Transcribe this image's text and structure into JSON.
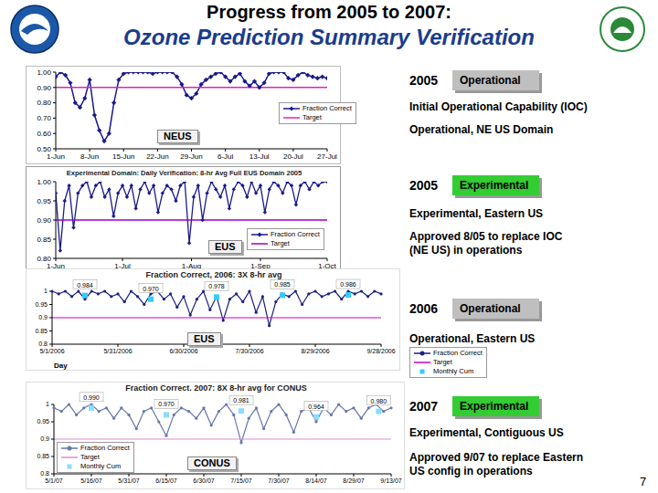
{
  "slide": {
    "title": "Progress from 2005 to 2007:",
    "subtitle": "Ozone Prediction Summary Verification",
    "page": 7,
    "panels": [
      {
        "year": "2005",
        "status": "Operational",
        "color": "#bfbfbf",
        "lines": [
          "Initial Operational Capability (IOC)",
          "Operational, NE US Domain"
        ]
      },
      {
        "year": "2005",
        "status": "Experimental",
        "color": "#33cc33",
        "lines": [
          "Experimental, Eastern US",
          "Approved 8/05 to replace IOC",
          "(NE US) in operations"
        ]
      },
      {
        "year": "2006",
        "status": "Operational",
        "color": "#bfbfbf",
        "lines": [
          "Operational, Eastern US"
        ]
      },
      {
        "year": "2007",
        "status": "Experimental",
        "color": "#33cc33",
        "lines": [
          "Experimental, Contiguous US",
          "Approved 9/07 to replace Eastern",
          "US config in operations"
        ]
      }
    ]
  },
  "chart_data": [
    {
      "type": "line",
      "annotations": [
        "NEUS"
      ],
      "grid": false,
      "xlim": [
        0,
        56
      ],
      "xticks": [
        {
          "value": 0,
          "label": "1-Jun"
        },
        {
          "value": 7,
          "label": "8-Jun"
        },
        {
          "value": 14,
          "label": "15-Jun"
        },
        {
          "value": 21,
          "label": "22-Jun"
        },
        {
          "value": 28,
          "label": "29-Jun"
        },
        {
          "value": 35,
          "label": "6-Jul"
        },
        {
          "value": 42,
          "label": "13-Jul"
        },
        {
          "value": 49,
          "label": "20-Jul"
        },
        {
          "value": 56,
          "label": "27-Jul"
        }
      ],
      "ylim": [
        0.5,
        1
      ],
      "yticks": [
        {
          "value": 0.5,
          "label": "0.50"
        },
        {
          "value": 0.6,
          "label": "0.60"
        },
        {
          "value": 0.7,
          "label": "0.70"
        },
        {
          "value": 0.8,
          "label": "0.80"
        },
        {
          "value": 0.9,
          "label": "0.90"
        },
        {
          "value": 1,
          "label": "1.00"
        }
      ],
      "series": [
        {
          "name": "Fraction Correct",
          "color": "#1a1a8c",
          "marker": "diamond",
          "x": [
            0,
            1,
            2,
            3,
            4,
            5,
            6,
            7,
            8,
            9,
            10,
            11,
            12,
            13,
            14,
            15,
            16,
            17,
            18,
            19,
            20,
            21,
            22,
            23,
            24,
            25,
            26,
            27,
            28,
            29,
            30,
            31,
            32,
            33,
            34,
            35,
            36,
            37,
            38,
            39,
            40,
            41,
            42,
            43,
            44,
            45,
            46,
            47,
            48,
            49,
            50,
            51,
            52,
            53,
            54,
            55,
            56
          ],
          "values": [
            0.97,
            1,
            0.98,
            0.93,
            0.8,
            0.77,
            0.83,
            0.95,
            0.72,
            0.62,
            0.55,
            0.6,
            0.8,
            0.95,
            0.99,
            1,
            1,
            1,
            1,
            1,
            0.99,
            1,
            1,
            1,
            1,
            0.97,
            0.92,
            0.85,
            0.83,
            0.86,
            0.92,
            0.95,
            0.97,
            0.99,
            1,
            0.97,
            0.94,
            0.97,
            0.99,
            0.94,
            0.91,
            0.94,
            0.9,
            0.93,
            0.99,
            1,
            1,
            1,
            0.96,
            0.95,
            0.98,
            1,
            0.98,
            0.97,
            0.96,
            0.97,
            0.96
          ]
        },
        {
          "name": "Target",
          "color": "#e020c0",
          "marker": "none",
          "x": [
            0,
            56
          ],
          "values": [
            0.9,
            0.9
          ]
        }
      ]
    },
    {
      "type": "line",
      "title": "Experimental Domain: Daily Verification: 8-hr Avg Full EUS Domain 2005",
      "annotations": [
        "EUS"
      ],
      "grid": false,
      "xlim": [
        0,
        122
      ],
      "xticks": [
        {
          "value": 0,
          "label": "1-Jun"
        },
        {
          "value": 30,
          "label": "1-Jul"
        },
        {
          "value": 61,
          "label": "1-Aug"
        },
        {
          "value": 92,
          "label": "1-Sep"
        },
        {
          "value": 122,
          "label": "1-Oct"
        }
      ],
      "ylim": [
        0.8,
        1
      ],
      "yticks": [
        {
          "value": 0.8,
          "label": "0.80"
        },
        {
          "value": 0.85,
          "label": "0.85"
        },
        {
          "value": 0.9,
          "label": "0.90"
        },
        {
          "value": 0.95,
          "label": "0.95"
        },
        {
          "value": 1,
          "label": "1.00"
        }
      ],
      "series": [
        {
          "name": "Fraction Correct",
          "color": "#1a1a8c",
          "marker": "diamond",
          "x": [
            0,
            2,
            4,
            6,
            8,
            10,
            12,
            14,
            16,
            18,
            20,
            22,
            24,
            26,
            28,
            30,
            32,
            34,
            36,
            38,
            40,
            42,
            44,
            46,
            48,
            50,
            52,
            54,
            56,
            58,
            60,
            62,
            64,
            66,
            68,
            70,
            72,
            74,
            76,
            78,
            80,
            82,
            84,
            86,
            88,
            90,
            92,
            94,
            96,
            98,
            100,
            102,
            104,
            106,
            108,
            110,
            112,
            114,
            116,
            118,
            120,
            122
          ],
          "values": [
            0.97,
            0.82,
            0.95,
            0.99,
            0.88,
            0.97,
            0.99,
            1,
            0.96,
            0.99,
            1,
            0.96,
            0.98,
            0.91,
            0.97,
            0.99,
            0.96,
            0.99,
            0.93,
            0.98,
            1,
            0.97,
            0.99,
            0.92,
            0.97,
            0.99,
            0.98,
            0.95,
            0.99,
            1,
            0.84,
            0.96,
            0.99,
            0.9,
            0.97,
            1,
            0.98,
            0.96,
            0.99,
            0.93,
            0.98,
            1,
            0.99,
            0.96,
            1,
            0.97,
            0.99,
            0.92,
            0.98,
            1,
            0.99,
            0.97,
            1,
            0.99,
            0.94,
            0.99,
            1,
            0.98,
            1,
            0.99,
            1,
            1
          ]
        },
        {
          "name": "Target",
          "color": "#9900cc",
          "marker": "none",
          "x": [
            0,
            122
          ],
          "values": [
            0.9,
            0.9
          ]
        }
      ]
    },
    {
      "type": "line",
      "title": "Fraction Correct, 2006: 3X 8-hr avg",
      "xlabel": "Day",
      "annotations": [
        "EUS"
      ],
      "grid": false,
      "xlim": [
        0,
        150
      ],
      "xticks": [
        {
          "value": 0,
          "label": "5/1/2006"
        },
        {
          "value": 30,
          "label": "5/31/2006"
        },
        {
          "value": 60,
          "label": "6/30/2006"
        },
        {
          "value": 90,
          "label": "7/30/2006"
        },
        {
          "value": 120,
          "label": "8/29/2006"
        },
        {
          "value": 150,
          "label": "9/28/2006"
        }
      ],
      "ylim": [
        0.8,
        1
      ],
      "yticks": [
        0.8,
        0.85,
        0.9,
        0.95,
        1
      ],
      "series": [
        {
          "name": "Fraction Correct",
          "color": "#1c2280",
          "marker": "circle",
          "x": [
            0,
            3,
            6,
            9,
            12,
            15,
            18,
            21,
            24,
            27,
            30,
            33,
            36,
            39,
            42,
            45,
            48,
            51,
            54,
            57,
            60,
            63,
            66,
            69,
            72,
            75,
            78,
            81,
            84,
            87,
            90,
            93,
            96,
            99,
            102,
            105,
            108,
            111,
            114,
            117,
            120,
            123,
            126,
            129,
            132,
            135,
            138,
            141,
            144,
            147,
            150
          ],
          "values": [
            1,
            0.99,
            1,
            0.98,
            1,
            0.97,
            1,
            0.99,
            1,
            0.98,
            0.99,
            0.96,
            1,
            0.98,
            0.95,
            0.99,
            1,
            0.97,
            0.99,
            0.94,
            0.98,
            0.91,
            0.97,
            1,
            0.93,
            0.98,
            0.89,
            0.97,
            0.99,
            0.96,
            1,
            0.92,
            0.98,
            0.87,
            0.96,
            0.99,
            0.98,
            1,
            0.95,
            0.99,
            1,
            0.98,
            0.99,
            1,
            0.97,
            1,
            0.99,
            1,
            0.98,
            1,
            0.99
          ]
        },
        {
          "name": "Target",
          "color": "#cc00cc",
          "marker": "none",
          "x": [
            0,
            150
          ],
          "values": [
            0.9,
            0.9
          ]
        },
        {
          "name": "Monthly Cum",
          "type": "scatter",
          "color": "#33ccff",
          "marker": "square",
          "data_labels": true,
          "x": [
            15,
            45,
            75,
            105,
            135
          ],
          "values": [
            0.984,
            0.97,
            0.978,
            0.985,
            0.986
          ],
          "value_labels": [
            "0.984",
            "0.970",
            "0.978",
            "0.985",
            "0.986"
          ]
        }
      ]
    },
    {
      "type": "line",
      "title": "Fraction Correct. 2007: 8X 8-hr avg for CONUS",
      "annotations": [
        "CONUS"
      ],
      "grid": false,
      "xlim": [
        0,
        135
      ],
      "xticks": [
        {
          "value": 0,
          "label": "5/1/07"
        },
        {
          "value": 15,
          "label": "5/16/07"
        },
        {
          "value": 30,
          "label": "5/31/07"
        },
        {
          "value": 45,
          "label": "6/15/07"
        },
        {
          "value": 60,
          "label": "6/30/07"
        },
        {
          "value": 75,
          "label": "7/15/07"
        },
        {
          "value": 90,
          "label": "7/30/07"
        },
        {
          "value": 105,
          "label": "8/14/07"
        },
        {
          "value": 120,
          "label": "8/29/07"
        },
        {
          "value": 135,
          "label": "9/13/07"
        }
      ],
      "ylim": [
        0.8,
        1
      ],
      "yticks": [
        0.8,
        0.85,
        0.9,
        0.95,
        1
      ],
      "series": [
        {
          "name": "Fraction Correct",
          "color": "#6677aa",
          "marker": "circle",
          "x": [
            0,
            3,
            6,
            9,
            12,
            15,
            18,
            21,
            24,
            27,
            30,
            33,
            36,
            39,
            42,
            45,
            48,
            51,
            54,
            57,
            60,
            63,
            66,
            69,
            72,
            75,
            78,
            81,
            84,
            87,
            90,
            93,
            96,
            99,
            102,
            105,
            108,
            111,
            114,
            117,
            120,
            123,
            126,
            129,
            132,
            135
          ],
          "values": [
            0.99,
            0.98,
            1,
            0.97,
            0.99,
            1,
            0.98,
            0.99,
            0.96,
            0.99,
            0.97,
            0.93,
            0.98,
            0.99,
            0.95,
            0.91,
            0.97,
            0.99,
            0.98,
            0.96,
            0.99,
            0.94,
            0.98,
            1,
            0.97,
            0.89,
            0.96,
            0.99,
            0.93,
            0.98,
            1,
            0.97,
            0.92,
            0.98,
            0.99,
            0.95,
            0.99,
            0.97,
            1,
            0.98,
            0.99,
            0.96,
            0.99,
            1,
            0.98,
            0.99
          ]
        },
        {
          "name": "Target",
          "color": "#dd88dd",
          "marker": "none",
          "x": [
            0,
            135
          ],
          "values": [
            0.9,
            0.9
          ]
        },
        {
          "name": "Monthly Cum",
          "type": "scatter",
          "color": "#88ddff",
          "marker": "square",
          "data_labels": true,
          "x": [
            15,
            45,
            75,
            105,
            130
          ],
          "values": [
            0.99,
            0.97,
            0.981,
            0.964,
            0.98
          ],
          "value_labels": [
            "0.990",
            "0.970",
            "0.981",
            "0.964",
            "0.980"
          ]
        }
      ]
    }
  ]
}
